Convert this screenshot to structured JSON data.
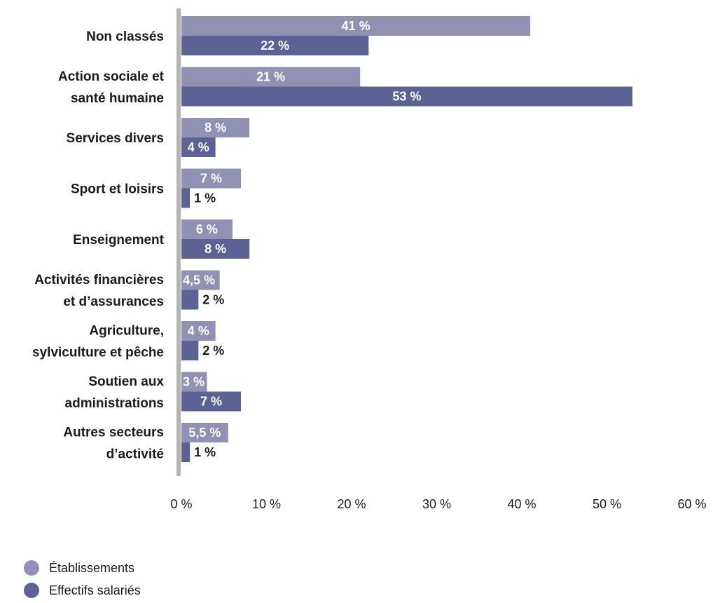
{
  "chart_data": {
    "type": "bar",
    "orientation": "horizontal",
    "categories": [
      [
        "Non classés"
      ],
      [
        "Action sociale et",
        "santé humaine"
      ],
      [
        "Services divers"
      ],
      [
        "Sport et loisirs"
      ],
      [
        "Enseignement"
      ],
      [
        "Activités financières",
        "et d’assurances"
      ],
      [
        "Agriculture,",
        "sylviculture et pêche"
      ],
      [
        "Soutien aux",
        "administrations"
      ],
      [
        "Autres secteurs",
        "d’activité"
      ]
    ],
    "series": [
      {
        "name": "Établissements",
        "color": "#9191b4",
        "values": [
          41,
          21,
          8,
          7,
          6,
          4.5,
          4,
          3,
          5.5
        ],
        "labels": [
          "41 %",
          "21 %",
          "8 %",
          "7 %",
          "6 %",
          "4,5 %",
          "4 %",
          "3 %",
          "5,5 %"
        ]
      },
      {
        "name": "Effectifs salariés",
        "color": "#5d6295",
        "values": [
          22,
          53,
          4,
          1,
          8,
          2,
          2,
          7,
          1
        ],
        "labels": [
          "22 %",
          "53 %",
          "4 %",
          "1 %",
          "8 %",
          "2 %",
          "2 %",
          "7 %",
          "1 %"
        ]
      }
    ],
    "xlim": [
      0,
      60
    ],
    "xticks": [
      "0 %",
      "10 %",
      "20 %",
      "30 %",
      "40 %",
      "50 %",
      "60 %"
    ],
    "xtick_values": [
      0,
      10,
      20,
      30,
      40,
      50,
      60
    ],
    "legend_position": "bottom-left",
    "grid": false,
    "axis_color": "#b3b3b3"
  }
}
